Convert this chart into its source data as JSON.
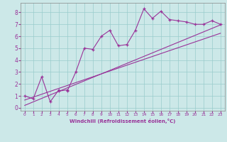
{
  "xlabel": "Windchill (Refroidissement éolien,°C)",
  "x_scatter": [
    0,
    1,
    2,
    3,
    4,
    4,
    5,
    5,
    6,
    7,
    8,
    9,
    10,
    11,
    12,
    13,
    14,
    15,
    16,
    17,
    18,
    19,
    20,
    21,
    22,
    23
  ],
  "y_scatter": [
    1.0,
    0.75,
    2.6,
    0.5,
    1.5,
    1.4,
    1.5,
    1.4,
    3.0,
    5.0,
    4.9,
    6.0,
    6.5,
    5.2,
    5.3,
    6.5,
    8.3,
    7.5,
    8.1,
    7.4,
    7.3,
    7.2,
    7.0,
    7.0,
    7.3,
    7.0
  ],
  "line1_x": [
    0,
    23
  ],
  "line1_y": [
    0.2,
    6.95
  ],
  "line2_x": [
    0,
    23
  ],
  "line2_y": [
    0.65,
    6.25
  ],
  "color": "#993399",
  "bg_color": "#cce8e8",
  "grid_color": "#99cccc",
  "xlim": [
    -0.5,
    23.5
  ],
  "ylim": [
    -0.25,
    8.8
  ],
  "xticks": [
    0,
    1,
    2,
    3,
    4,
    5,
    6,
    7,
    8,
    9,
    10,
    11,
    12,
    13,
    14,
    15,
    16,
    17,
    18,
    19,
    20,
    21,
    22,
    23
  ],
  "yticks": [
    0,
    1,
    2,
    3,
    4,
    5,
    6,
    7,
    8
  ]
}
